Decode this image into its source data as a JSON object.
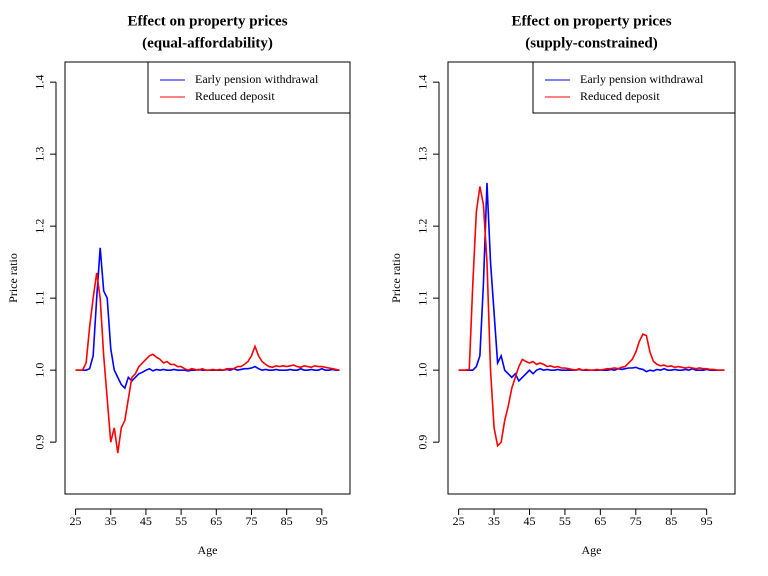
{
  "chart_data": [
    {
      "type": "line",
      "title": "Effect on property prices",
      "subtitle": "(equal-affordability)",
      "x_label": "Age",
      "y_label": "Price ratio",
      "x": [
        25,
        26,
        27,
        28,
        29,
        30,
        31,
        32,
        33,
        34,
        35,
        36,
        37,
        38,
        39,
        40,
        41,
        42,
        43,
        44,
        45,
        46,
        47,
        48,
        49,
        50,
        51,
        52,
        53,
        54,
        55,
        56,
        57,
        58,
        59,
        60,
        61,
        62,
        63,
        64,
        65,
        66,
        67,
        68,
        69,
        70,
        71,
        72,
        73,
        74,
        75,
        76,
        77,
        78,
        79,
        80,
        81,
        82,
        83,
        84,
        85,
        86,
        87,
        88,
        89,
        90,
        91,
        92,
        93,
        94,
        95,
        96,
        97,
        98,
        99,
        100
      ],
      "xlim": [
        22,
        103
      ],
      "ylim": [
        0.828,
        1.428
      ],
      "xticks": [
        25,
        35,
        45,
        55,
        65,
        75,
        85,
        95
      ],
      "yticks": [
        0.9,
        {
          "value": 1,
          "label": "1.0"
        },
        1.1,
        1.2,
        1.3,
        1.4
      ],
      "legend": "topright",
      "series": [
        {
          "name": "Early pension withdrawal",
          "color": "#0000ff",
          "values": [
            1,
            1,
            1,
            1,
            1.002,
            1.02,
            1.1,
            1.17,
            1.11,
            1.1,
            1.03,
            1,
            0.99,
            0.98,
            0.975,
            0.99,
            0.985,
            0.99,
            0.995,
            0.997,
            1,
            1.002,
            0.999,
            1.001,
            1,
            1.001,
            1,
            1,
            1.001,
            1,
            1,
            1,
            0.999,
            1,
            1,
            1.001,
            1,
            1,
            1,
            1,
            1,
            1,
            1,
            1.001,
            1,
            1.002,
            1,
            1.001,
            1.002,
            1.002,
            1.003,
            1.005,
            1.002,
            1,
            1.001,
            1,
            1,
            1.001,
            1,
            1,
            1,
            1.001,
            1,
            1,
            1.002,
            1,
            1,
            1.001,
            1,
            1,
            1.002,
            1,
            1,
            1.001,
            1,
            1
          ]
        },
        {
          "name": "Reduced deposit",
          "color": "#ff0000",
          "values": [
            1,
            1,
            1,
            1.01,
            1.06,
            1.1,
            1.135,
            1.1,
            1.02,
            0.96,
            0.9,
            0.92,
            0.885,
            0.92,
            0.93,
            0.96,
            0.99,
            0.995,
            1.005,
            1.01,
            1.015,
            1.02,
            1.022,
            1.018,
            1.015,
            1.01,
            1.012,
            1.008,
            1.008,
            1.005,
            1.005,
            1.002,
            1,
            1.002,
            1.001,
            1,
            1.002,
            1,
            1,
            1.001,
            1,
            1.001,
            1,
            1.002,
            1.002,
            1.002,
            1.005,
            1.005,
            1.008,
            1.012,
            1.02,
            1.033,
            1.02,
            1.012,
            1.008,
            1.005,
            1.004,
            1.006,
            1.005,
            1.006,
            1.005,
            1.006,
            1.007,
            1.005,
            1.004,
            1.006,
            1.005,
            1.004,
            1.006,
            1.005,
            1.005,
            1.004,
            1.003,
            1.002,
            1.001,
            1
          ]
        }
      ]
    },
    {
      "type": "line",
      "title": "Effect on property prices",
      "subtitle": "(supply-constrained)",
      "x_label": "Age",
      "y_label": "Price ratio",
      "x": [
        25,
        26,
        27,
        28,
        29,
        30,
        31,
        32,
        33,
        34,
        35,
        36,
        37,
        38,
        39,
        40,
        41,
        42,
        43,
        44,
        45,
        46,
        47,
        48,
        49,
        50,
        51,
        52,
        53,
        54,
        55,
        56,
        57,
        58,
        59,
        60,
        61,
        62,
        63,
        64,
        65,
        66,
        67,
        68,
        69,
        70,
        71,
        72,
        73,
        74,
        75,
        76,
        77,
        78,
        79,
        80,
        81,
        82,
        83,
        84,
        85,
        86,
        87,
        88,
        89,
        90,
        91,
        92,
        93,
        94,
        95,
        96,
        97,
        98,
        99,
        100
      ],
      "xlim": [
        22,
        103
      ],
      "ylim": [
        0.828,
        1.428
      ],
      "xticks": [
        25,
        35,
        45,
        55,
        65,
        75,
        85,
        95
      ],
      "yticks": [
        0.9,
        {
          "value": 1,
          "label": "1.0"
        },
        1.1,
        1.2,
        1.3,
        1.4
      ],
      "legend": "topright",
      "series": [
        {
          "name": "Early pension withdrawal",
          "color": "#0000ff",
          "values": [
            1,
            1,
            1,
            1,
            1,
            1.005,
            1.02,
            1.12,
            1.26,
            1.15,
            1.08,
            1.01,
            1.02,
            1,
            0.995,
            0.99,
            0.995,
            0.985,
            0.99,
            0.995,
            1,
            0.995,
            1,
            1.002,
            1,
            1.001,
            1,
            1,
            1.001,
            1,
            1,
            1,
            1,
            1,
            1.001,
            1,
            1,
            1,
            1,
            1,
            1,
            1,
            1,
            1.001,
            1,
            1.002,
            1.001,
            1.002,
            1.003,
            1.003,
            1.004,
            1.002,
            1.001,
            0.998,
            1,
            0.999,
            1.001,
            1,
            1.002,
            1,
            1,
            1.001,
            1,
            1,
            1.001,
            1,
            1.002,
            1,
            1,
            1,
            1.001,
            1,
            1,
            1,
            1,
            1
          ]
        },
        {
          "name": "Reduced deposit",
          "color": "#ff0000",
          "values": [
            1,
            1,
            1,
            1.001,
            1.12,
            1.22,
            1.255,
            1.23,
            1.15,
            1,
            0.92,
            0.895,
            0.9,
            0.93,
            0.95,
            0.975,
            0.99,
            1.005,
            1.015,
            1.012,
            1.01,
            1.012,
            1.008,
            1.01,
            1.008,
            1.005,
            1.006,
            1.004,
            1.005,
            1.003,
            1.003,
            1.002,
            1.001,
            1,
            1.002,
            1,
            1.001,
            1,
            1,
            1.001,
            1,
            1.001,
            1.002,
            1.002,
            1.003,
            1.002,
            1.004,
            1.005,
            1.01,
            1.015,
            1.025,
            1.04,
            1.05,
            1.048,
            1.025,
            1.012,
            1.008,
            1.006,
            1.007,
            1.005,
            1.006,
            1.004,
            1.005,
            1.004,
            1.003,
            1.004,
            1.003,
            1.002,
            1.003,
            1.002,
            1.002,
            1.001,
            1.001,
            1,
            1,
            1
          ]
        }
      ]
    }
  ]
}
